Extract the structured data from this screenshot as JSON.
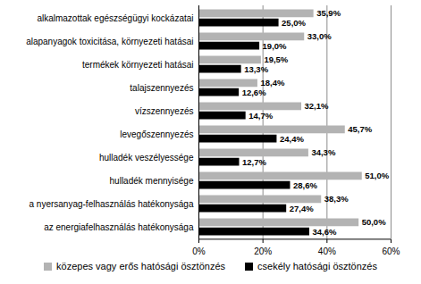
{
  "chart_data": {
    "type": "bar",
    "orientation": "horizontal",
    "categories": [
      "alkalmazottak egészségügyi kockázatai",
      "alapanyagok toxicitása, környezeti hatásai",
      "termékek környezeti hatásai",
      "talajszennyezés",
      "vízszennyezés",
      "levegőszennyezés",
      "hulladék veszélyessége",
      "hulladék mennyisége",
      "a nyersanyag-felhasználás hatékonysága",
      "az energiafelhasználás hatékonysága"
    ],
    "series": [
      {
        "name": "közepes vagy erős hatósági ösztönzés",
        "color": "#b3b3b3",
        "values": [
          35.9,
          33.0,
          19.5,
          18.4,
          32.1,
          45.7,
          34.3,
          51.0,
          38.3,
          50.0
        ],
        "value_labels": [
          "35,9%",
          "33,0%",
          "19,5%",
          "18,4%",
          "32,1%",
          "45,7%",
          "34,3%",
          "51,0%",
          "38,3%",
          "50,0%"
        ]
      },
      {
        "name": "csekély hatósági ösztönzés",
        "color": "#000000",
        "values": [
          25.0,
          19.0,
          13.3,
          12.6,
          14.7,
          24.4,
          12.7,
          28.6,
          27.4,
          34.6
        ],
        "value_labels": [
          "25,0%",
          "19,0%",
          "13,3%",
          "12,6%",
          "14,7%",
          "24,4%",
          "12,7%",
          "28,6%",
          "27,4%",
          "34,6%"
        ]
      }
    ],
    "xlim": [
      0,
      60
    ],
    "xticks": [
      {
        "value": 0,
        "label": "0%"
      },
      {
        "value": 20,
        "label": "20%"
      },
      {
        "value": 40,
        "label": "40%"
      },
      {
        "value": 60,
        "label": "60%"
      }
    ],
    "grid": true,
    "data_labels": true,
    "legend": "bottom"
  }
}
